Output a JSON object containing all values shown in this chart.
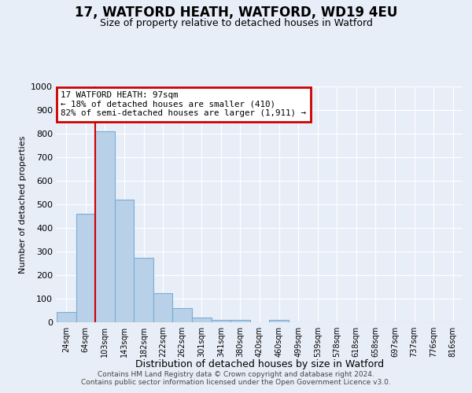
{
  "title": "17, WATFORD HEATH, WATFORD, WD19 4EU",
  "subtitle": "Size of property relative to detached houses in Watford",
  "xlabel": "Distribution of detached houses by size in Watford",
  "ylabel": "Number of detached properties",
  "categories": [
    "24sqm",
    "64sqm",
    "103sqm",
    "143sqm",
    "182sqm",
    "222sqm",
    "262sqm",
    "301sqm",
    "341sqm",
    "380sqm",
    "420sqm",
    "460sqm",
    "499sqm",
    "539sqm",
    "578sqm",
    "618sqm",
    "658sqm",
    "697sqm",
    "737sqm",
    "776sqm",
    "816sqm"
  ],
  "values": [
    45,
    460,
    810,
    520,
    275,
    125,
    60,
    20,
    10,
    10,
    0,
    10,
    0,
    0,
    0,
    0,
    0,
    0,
    0,
    0,
    0
  ],
  "bar_color": "#b8d0e8",
  "bar_edge_color": "#7aadd4",
  "property_line_x": 1.5,
  "annotation_text": "17 WATFORD HEATH: 97sqm\n← 18% of detached houses are smaller (410)\n82% of semi-detached houses are larger (1,911) →",
  "annotation_box_color": "#ffffff",
  "annotation_box_edge_color": "#cc0000",
  "red_line_color": "#cc0000",
  "ylim": [
    0,
    1000
  ],
  "yticks": [
    0,
    100,
    200,
    300,
    400,
    500,
    600,
    700,
    800,
    900,
    1000
  ],
  "footer_line1": "Contains HM Land Registry data © Crown copyright and database right 2024.",
  "footer_line2": "Contains public sector information licensed under the Open Government Licence v3.0.",
  "bg_color": "#e8eef8",
  "plot_bg_color": "#e8eef8",
  "grid_color": "#ffffff",
  "title_fontsize": 12,
  "subtitle_fontsize": 9,
  "ylabel_fontsize": 8,
  "xlabel_fontsize": 9
}
